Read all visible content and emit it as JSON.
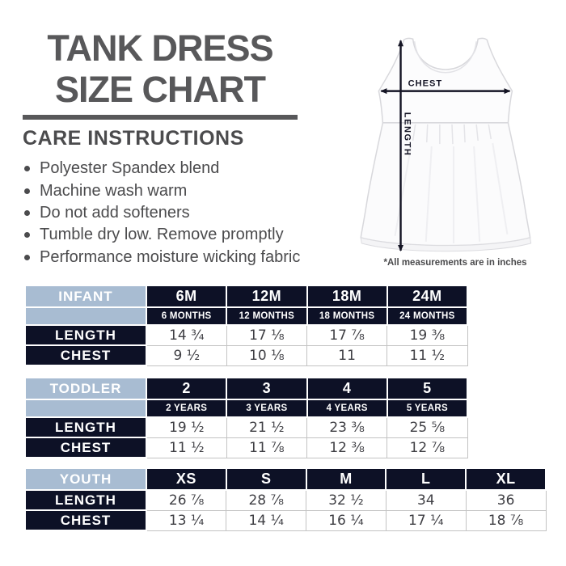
{
  "title": {
    "line1": "TANK DRESS",
    "line2": "SIZE CHART"
  },
  "care": {
    "heading": "CARE INSTRUCTIONS",
    "items": [
      "Polyester Spandex blend",
      "Machine wash warm",
      "Do not add softeners",
      "Tumble dry low. Remove promptly",
      "Performance moisture wicking fabric"
    ]
  },
  "diagram": {
    "chest_label": "CHEST",
    "length_label": "LENGTH",
    "footnote": "*All measurements are in inches"
  },
  "colors": {
    "title_gray": "#58585a",
    "text_gray": "#4b4b4d",
    "header_blue": "#a8bcd2",
    "navy": "#0d1126",
    "value_gray": "#3f3f44",
    "border_gray": "#c3c3c3",
    "arrow_black": "#141424"
  },
  "tables": [
    {
      "name": "INFANT",
      "sizes": [
        "6M",
        "12M",
        "18M",
        "24M"
      ],
      "sub": [
        "6 MONTHS",
        "12 MONTHS",
        "18 MONTHS",
        "24 MONTHS"
      ],
      "rows": [
        {
          "label": "LENGTH",
          "values": [
            "14 ¾",
            "17 ⅛",
            "17 ⅞",
            "19 ⅜"
          ]
        },
        {
          "label": "CHEST",
          "values": [
            "9 ½",
            "10 ⅛",
            "11",
            "11 ½"
          ]
        }
      ]
    },
    {
      "name": "TODDLER",
      "sizes": [
        "2",
        "3",
        "4",
        "5"
      ],
      "sub": [
        "2 YEARS",
        "3 YEARS",
        "4 YEARS",
        "5 YEARS"
      ],
      "rows": [
        {
          "label": "LENGTH",
          "values": [
            "19 ½",
            "21 ½",
            "23 ⅜",
            "25 ⅝"
          ]
        },
        {
          "label": "CHEST",
          "values": [
            "11 ½",
            "11 ⅞",
            "12 ⅜",
            "12 ⅞"
          ]
        }
      ]
    },
    {
      "name": "YOUTH",
      "sizes": [
        "XS",
        "S",
        "M",
        "L",
        "XL"
      ],
      "sub": null,
      "rows": [
        {
          "label": "LENGTH",
          "values": [
            "26 ⅞",
            "28 ⅞",
            "32 ½",
            "34",
            "36"
          ]
        },
        {
          "label": "CHEST",
          "values": [
            "13 ¼",
            "14 ¼",
            "16 ¼",
            "17 ¼",
            "18 ⅞"
          ]
        }
      ]
    }
  ]
}
